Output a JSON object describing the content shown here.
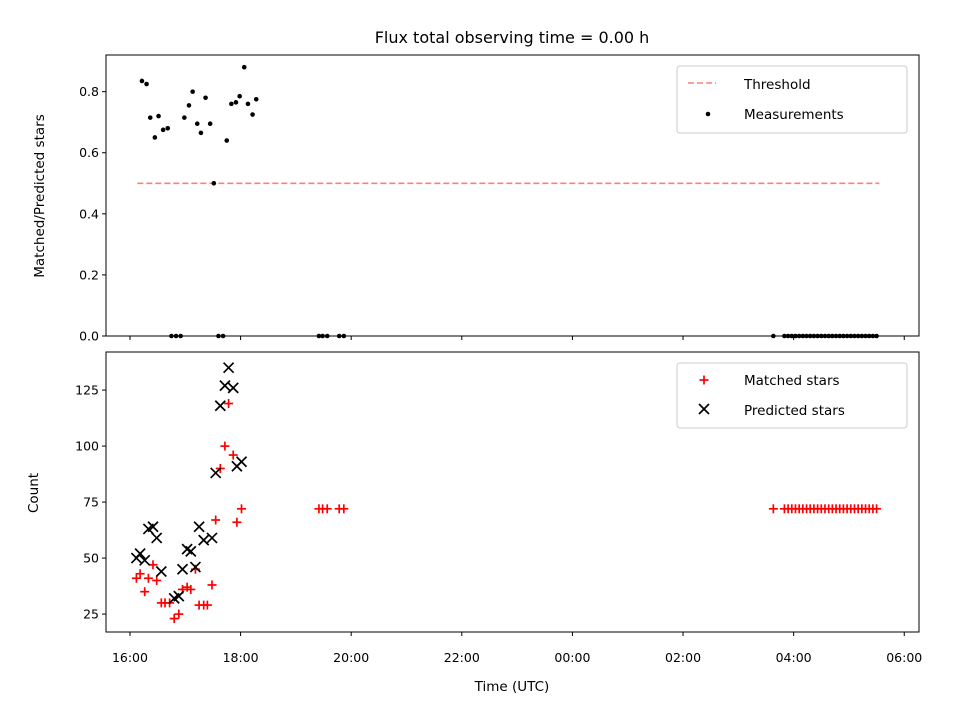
{
  "chart_data": [
    {
      "type": "scatter",
      "title": "Flux total observing time = 0.00 h",
      "xlabel": "",
      "ylabel": "Matched/Predicted stars",
      "ylim": [
        0,
        0.92
      ],
      "yticks": [
        0.0,
        0.2,
        0.4,
        0.6,
        0.8
      ],
      "ytick_labels": [
        "0.0",
        "0.2",
        "0.4",
        "0.6",
        "0.8"
      ],
      "grid": false,
      "legend_position": "top-right",
      "threshold": {
        "name": "Threshold",
        "value": 0.5,
        "x_start": "16:08",
        "x_end": "05:33",
        "color": "#ff7f7f"
      },
      "series": [
        {
          "name": "Measurements",
          "color": "#000000",
          "points": [
            [
              "16:13",
              0.835
            ],
            [
              "16:18",
              0.825
            ],
            [
              "16:22",
              0.715
            ],
            [
              "16:27",
              0.65
            ],
            [
              "16:31",
              0.72
            ],
            [
              "16:36",
              0.675
            ],
            [
              "16:41",
              0.68
            ],
            [
              "16:45",
              0.0
            ],
            [
              "16:50",
              0.0
            ],
            [
              "16:55",
              0.0
            ],
            [
              "16:59",
              0.715
            ],
            [
              "17:04",
              0.755
            ],
            [
              "17:08",
              0.8
            ],
            [
              "17:13",
              0.695
            ],
            [
              "17:17",
              0.665
            ],
            [
              "17:22",
              0.78
            ],
            [
              "17:27",
              0.695
            ],
            [
              "17:31",
              0.5
            ],
            [
              "17:36",
              0.0
            ],
            [
              "17:41",
              0.0
            ],
            [
              "17:45",
              0.64
            ],
            [
              "17:50",
              0.76
            ],
            [
              "17:55",
              0.765
            ],
            [
              "17:59",
              0.785
            ],
            [
              "18:04",
              0.88
            ],
            [
              "18:08",
              0.76
            ],
            [
              "18:13",
              0.725
            ],
            [
              "18:17",
              0.775
            ],
            [
              "19:25",
              0.0
            ],
            [
              "19:29",
              0.0
            ],
            [
              "19:34",
              0.0
            ],
            [
              "19:47",
              0.0
            ],
            [
              "19:52",
              0.0
            ],
            [
              "03:38",
              0.0
            ],
            [
              "03:50",
              0.0
            ],
            [
              "03:54",
              0.0
            ],
            [
              "03:58",
              0.0
            ],
            [
              "04:02",
              0.0
            ],
            [
              "04:06",
              0.0
            ],
            [
              "04:10",
              0.0
            ],
            [
              "04:14",
              0.0
            ],
            [
              "04:18",
              0.0
            ],
            [
              "04:22",
              0.0
            ],
            [
              "04:26",
              0.0
            ],
            [
              "04:30",
              0.0
            ],
            [
              "04:34",
              0.0
            ],
            [
              "04:38",
              0.0
            ],
            [
              "04:42",
              0.0
            ],
            [
              "04:46",
              0.0
            ],
            [
              "04:50",
              0.0
            ],
            [
              "04:54",
              0.0
            ],
            [
              "04:58",
              0.0
            ],
            [
              "05:02",
              0.0
            ],
            [
              "05:06",
              0.0
            ],
            [
              "05:10",
              0.0
            ],
            [
              "05:14",
              0.0
            ],
            [
              "05:18",
              0.0
            ],
            [
              "05:22",
              0.0
            ],
            [
              "05:26",
              0.0
            ],
            [
              "05:30",
              0.0
            ]
          ]
        }
      ]
    },
    {
      "type": "scatter",
      "title": "",
      "xlabel": "Time (UTC)",
      "ylabel": "Count",
      "ylim": [
        17,
        142
      ],
      "yticks": [
        25,
        50,
        75,
        100,
        125
      ],
      "ytick_labels": [
        "25",
        "50",
        "75",
        "100",
        "125"
      ],
      "xlim": [
        "15:34",
        "06:16"
      ],
      "xticks": [
        "16:00",
        "18:00",
        "20:00",
        "22:00",
        "00:00",
        "02:00",
        "04:00",
        "06:00"
      ],
      "xtick_labels": [
        "16:00",
        "18:00",
        "20:00",
        "22:00",
        "00:00",
        "02:00",
        "04:00",
        "06:00"
      ],
      "grid": false,
      "legend_position": "top-right",
      "series": [
        {
          "name": "Matched stars",
          "marker": "plus",
          "color": "#ff0000",
          "points": [
            [
              "16:07",
              41
            ],
            [
              "16:11",
              43
            ],
            [
              "16:16",
              35
            ],
            [
              "16:20",
              41
            ],
            [
              "16:25",
              47
            ],
            [
              "16:29",
              40
            ],
            [
              "16:34",
              30
            ],
            [
              "16:38",
              30
            ],
            [
              "16:43",
              30
            ],
            [
              "16:48",
              23
            ],
            [
              "16:53",
              25
            ],
            [
              "16:57",
              36
            ],
            [
              "17:02",
              37
            ],
            [
              "17:06",
              36
            ],
            [
              "17:11",
              45
            ],
            [
              "17:15",
              29
            ],
            [
              "17:20",
              29
            ],
            [
              "17:24",
              29
            ],
            [
              "17:29",
              38
            ],
            [
              "17:33",
              67
            ],
            [
              "17:38",
              90
            ],
            [
              "17:43",
              100
            ],
            [
              "17:47",
              119
            ],
            [
              "17:52",
              96
            ],
            [
              "17:56",
              66
            ],
            [
              "18:01",
              72
            ],
            [
              "19:25",
              72
            ],
            [
              "19:29",
              72
            ],
            [
              "19:34",
              72
            ],
            [
              "19:47",
              72
            ],
            [
              "19:52",
              72
            ],
            [
              "03:38",
              72
            ],
            [
              "03:50",
              72
            ],
            [
              "03:54",
              72
            ],
            [
              "03:58",
              72
            ],
            [
              "04:02",
              72
            ],
            [
              "04:06",
              72
            ],
            [
              "04:10",
              72
            ],
            [
              "04:14",
              72
            ],
            [
              "04:18",
              72
            ],
            [
              "04:22",
              72
            ],
            [
              "04:26",
              72
            ],
            [
              "04:30",
              72
            ],
            [
              "04:34",
              72
            ],
            [
              "04:38",
              72
            ],
            [
              "04:42",
              72
            ],
            [
              "04:46",
              72
            ],
            [
              "04:50",
              72
            ],
            [
              "04:54",
              72
            ],
            [
              "04:58",
              72
            ],
            [
              "05:02",
              72
            ],
            [
              "05:06",
              72
            ],
            [
              "05:10",
              72
            ],
            [
              "05:14",
              72
            ],
            [
              "05:18",
              72
            ],
            [
              "05:22",
              72
            ],
            [
              "05:26",
              72
            ],
            [
              "05:30",
              72
            ]
          ]
        },
        {
          "name": "Predicted stars",
          "marker": "x",
          "color": "#000000",
          "points": [
            [
              "16:07",
              50
            ],
            [
              "16:11",
              52
            ],
            [
              "16:16",
              49
            ],
            [
              "16:20",
              63
            ],
            [
              "16:25",
              64
            ],
            [
              "16:29",
              59
            ],
            [
              "16:34",
              44
            ],
            [
              "16:48",
              32
            ],
            [
              "16:53",
              33
            ],
            [
              "16:57",
              45
            ],
            [
              "17:02",
              54
            ],
            [
              "17:06",
              53
            ],
            [
              "17:11",
              46
            ],
            [
              "17:15",
              64
            ],
            [
              "17:20",
              58
            ],
            [
              "17:29",
              59
            ],
            [
              "17:33",
              88
            ],
            [
              "17:38",
              118
            ],
            [
              "17:43",
              127
            ],
            [
              "17:47",
              135
            ],
            [
              "17:52",
              126
            ],
            [
              "17:56",
              91
            ],
            [
              "18:01",
              93
            ]
          ]
        }
      ]
    }
  ]
}
